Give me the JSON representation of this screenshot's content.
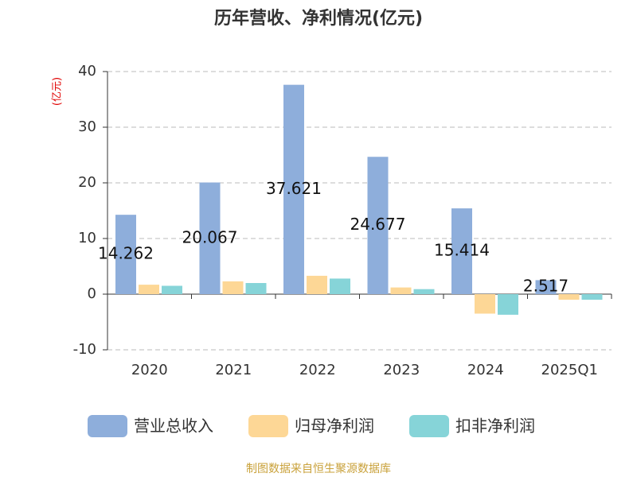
{
  "chart_data": {
    "type": "bar",
    "title": "历年营收、净利情况(亿元)",
    "y_label": "(亿元)",
    "categories": [
      "2020",
      "2021",
      "2022",
      "2023",
      "2024",
      "2025Q1"
    ],
    "series": [
      {
        "name": "营业总收入",
        "color": "#8eaedb",
        "values": [
          14.262,
          20.067,
          37.621,
          24.677,
          15.414,
          2.517
        ]
      },
      {
        "name": "归母净利润",
        "color": "#fdd796",
        "values": [
          1.7,
          2.3,
          3.3,
          1.2,
          -3.5,
          -1.0
        ]
      },
      {
        "name": "扣非净利润",
        "color": "#86d4d8",
        "values": [
          1.5,
          2.0,
          2.8,
          0.9,
          -3.7,
          -1.0
        ]
      }
    ],
    "ylim": [
      -10,
      40
    ],
    "yticks": [
      -10,
      0,
      10,
      20,
      30,
      40
    ],
    "grid": true,
    "source": "制图数据来自恒生聚源数据库"
  }
}
